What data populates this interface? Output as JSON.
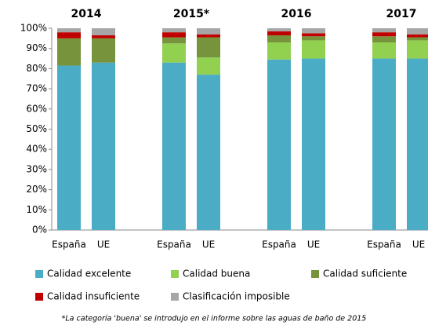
{
  "chart_data": {
    "type": "stacked_bar",
    "groups": [
      "2014",
      "2015*",
      "2016",
      "2017"
    ],
    "categories": [
      "España",
      "UE",
      "España",
      "UE",
      "España",
      "UE",
      "España",
      "UE"
    ],
    "series": [
      {
        "name": "Calidad excelente",
        "color": "#4bacc6",
        "values": [
          81.5,
          83,
          83,
          77,
          84.5,
          85,
          85,
          85
        ]
      },
      {
        "name": "Calidad buena",
        "color": "#92d050",
        "values": [
          0,
          0,
          9.5,
          8.5,
          8.5,
          9,
          8,
          9
        ]
      },
      {
        "name": "Calidad suficiente",
        "color": "#77933c",
        "values": [
          13.5,
          12,
          3,
          10,
          3.5,
          2,
          3,
          1.5
        ]
      },
      {
        "name": "Calidad insuficiente",
        "color": "#c00000",
        "values": [
          3,
          1.5,
          2.5,
          1.5,
          2,
          1.5,
          2,
          1.5
        ]
      },
      {
        "name": "Clasificación imposible",
        "color": "#a6a6a6",
        "values": [
          2,
          3.5,
          2,
          3,
          1.5,
          2.5,
          2,
          3
        ]
      }
    ],
    "ylim": [
      0,
      100
    ],
    "yticks": [
      {
        "value": 0,
        "label": "0%"
      },
      {
        "value": 10,
        "label": "10%"
      },
      {
        "value": 20,
        "label": "20%"
      },
      {
        "value": 30,
        "label": "30%"
      },
      {
        "value": 40,
        "label": "40%"
      },
      {
        "value": 50,
        "label": "50%"
      },
      {
        "value": 60,
        "label": "60%"
      },
      {
        "value": 70,
        "label": "70%"
      },
      {
        "value": 80,
        "label": "80%"
      },
      {
        "value": 90,
        "label": "90%"
      },
      {
        "value": 100,
        "label": "100%"
      }
    ],
    "footnote": "*La categoría 'buena' se introdujo en el informe sobre las aguas de baño de 2015"
  }
}
